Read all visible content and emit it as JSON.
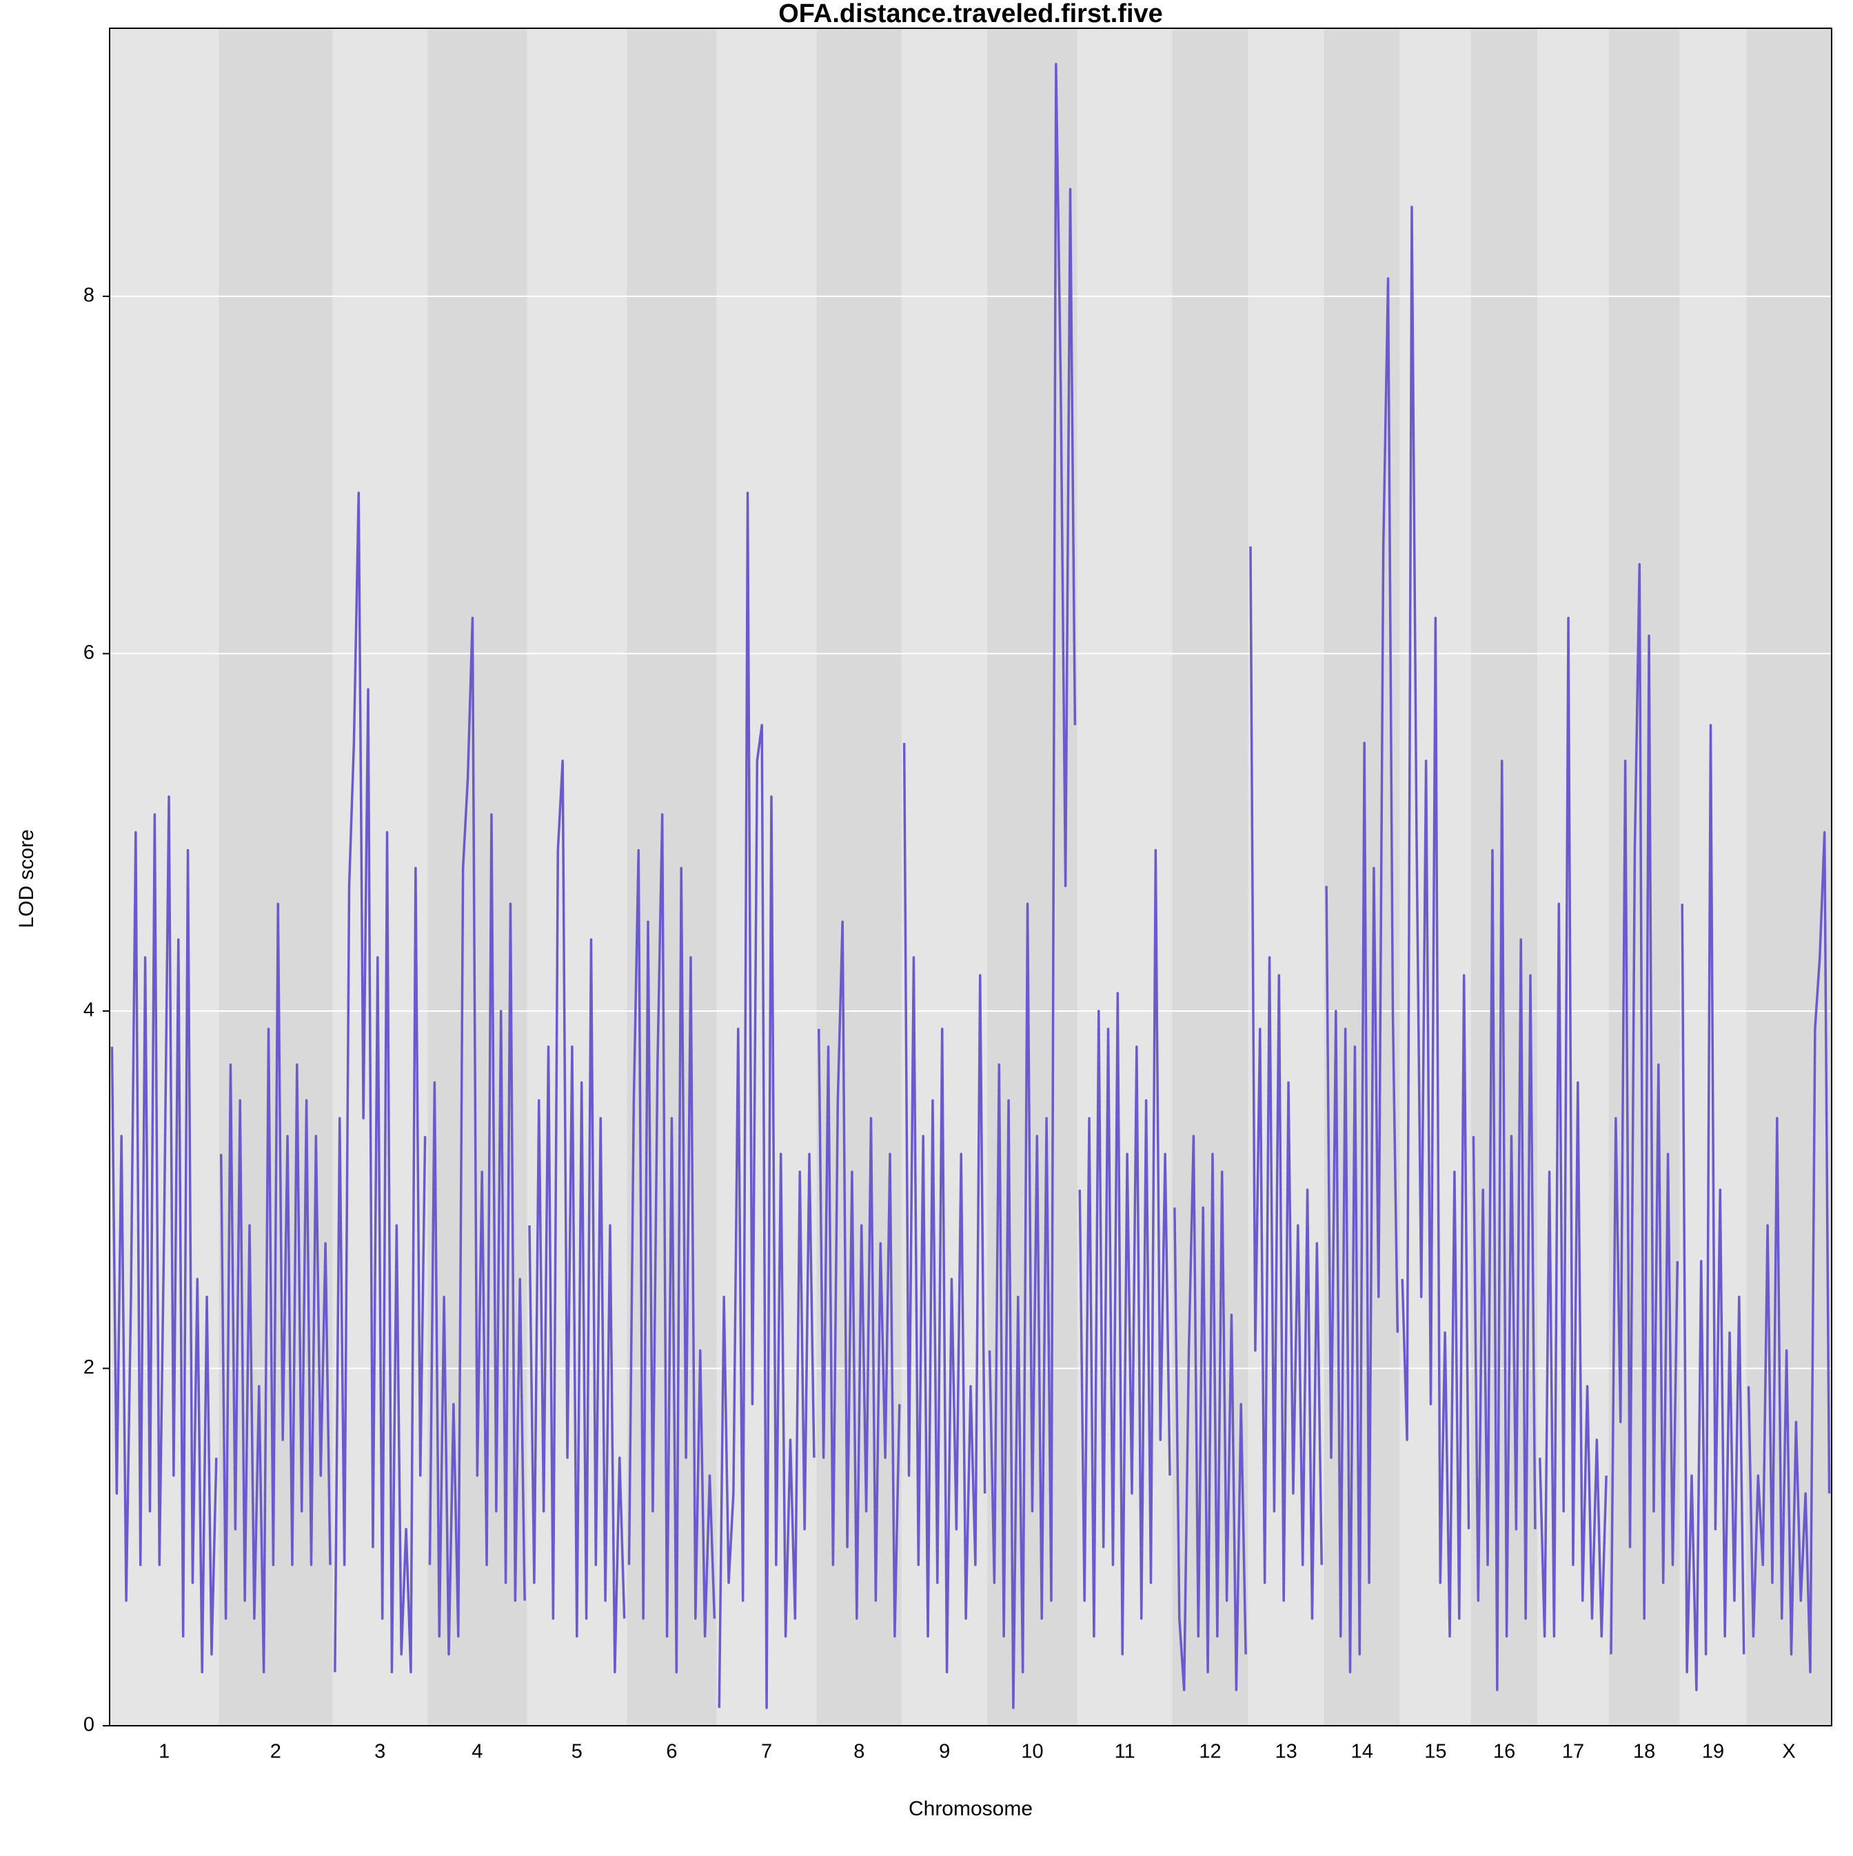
{
  "chart_data": {
    "type": "line",
    "title": "OFA.distance.traveled.first.five",
    "xlabel": "Chromosome",
    "ylabel": "LOD score",
    "color": "#6a5acd",
    "band_colors": [
      "#e5e5e5",
      "#d9d9d9"
    ],
    "grid": true,
    "ylim": [
      0,
      9.5
    ],
    "yticks": [
      0,
      2,
      4,
      6,
      8
    ],
    "categories": [
      "1",
      "2",
      "3",
      "4",
      "5",
      "6",
      "7",
      "8",
      "9",
      "10",
      "11",
      "12",
      "13",
      "14",
      "15",
      "16",
      "17",
      "18",
      "19",
      "X"
    ],
    "values": [
      [
        3.8,
        1.3,
        3.3,
        0.7,
        2.4,
        5.0,
        0.9,
        4.3,
        1.2,
        5.1,
        0.9,
        2.8,
        5.2,
        1.4,
        4.4,
        0.5,
        4.9,
        0.8,
        2.5,
        0.3,
        2.4,
        0.4,
        1.5
      ],
      [
        3.2,
        0.6,
        3.7,
        1.1,
        3.5,
        0.7,
        2.8,
        0.6,
        1.9,
        0.3,
        3.9,
        0.9,
        4.6,
        1.6,
        3.3,
        0.9,
        3.7,
        1.2,
        3.5,
        0.9,
        3.3,
        1.4,
        2.7,
        0.9
      ],
      [
        0.3,
        3.4,
        0.9,
        4.7,
        5.5,
        6.9,
        3.4,
        5.8,
        1.0,
        4.3,
        0.6,
        5.0,
        0.3,
        2.8,
        0.4,
        1.1,
        0.3,
        4.8,
        1.4,
        3.3
      ],
      [
        0.9,
        3.6,
        0.5,
        2.4,
        0.4,
        1.8,
        0.5,
        4.8,
        5.3,
        6.2,
        1.4,
        3.1,
        0.9,
        5.1,
        1.2,
        4.0,
        0.8,
        4.6,
        0.7,
        2.5,
        0.7
      ],
      [
        2.8,
        0.8,
        3.5,
        1.2,
        3.8,
        0.6,
        4.9,
        5.4,
        1.5,
        3.8,
        0.5,
        3.6,
        0.6,
        4.4,
        0.9,
        3.4,
        0.7,
        2.8,
        0.3,
        1.5,
        0.6
      ],
      [
        0.9,
        3.5,
        4.9,
        0.6,
        4.5,
        1.2,
        3.7,
        5.1,
        0.5,
        3.4,
        0.3,
        4.8,
        1.5,
        4.3,
        0.6,
        2.1,
        0.5,
        1.4,
        0.6
      ],
      [
        0.1,
        2.4,
        0.8,
        1.3,
        3.9,
        0.7,
        6.9,
        1.8,
        5.4,
        5.6,
        0.1,
        5.2,
        0.9,
        3.2,
        0.5,
        1.6,
        0.6,
        3.1,
        1.1,
        3.2,
        1.5
      ],
      [
        3.9,
        1.5,
        3.8,
        0.9,
        3.5,
        4.5,
        1.0,
        3.1,
        0.6,
        2.8,
        1.2,
        3.4,
        0.7,
        2.7,
        1.5,
        3.2,
        0.5,
        1.8
      ],
      [
        5.5,
        1.4,
        4.3,
        0.9,
        3.3,
        0.5,
        3.5,
        0.8,
        3.9,
        0.3,
        2.5,
        1.1,
        3.2,
        0.6,
        1.9,
        0.9,
        4.2,
        1.3
      ],
      [
        2.1,
        0.8,
        3.7,
        0.5,
        3.5,
        0.1,
        2.4,
        0.3,
        4.6,
        1.2,
        3.3,
        0.6,
        3.4,
        0.7,
        9.3,
        7.5,
        4.7,
        8.6,
        5.6
      ],
      [
        3.0,
        0.7,
        3.4,
        0.5,
        4.0,
        1.0,
        3.9,
        0.9,
        4.1,
        0.4,
        3.2,
        1.3,
        3.8,
        0.6,
        3.5,
        0.8,
        4.9,
        1.6,
        3.2,
        1.4
      ],
      [
        2.9,
        0.6,
        0.2,
        2.1,
        3.3,
        0.5,
        2.9,
        0.3,
        3.2,
        0.5,
        3.1,
        0.7,
        2.3,
        0.2,
        1.8,
        0.4
      ],
      [
        6.6,
        2.1,
        3.9,
        0.8,
        4.3,
        1.2,
        4.2,
        0.7,
        3.6,
        1.3,
        2.8,
        0.9,
        3.0,
        0.6,
        2.7,
        0.9
      ],
      [
        4.7,
        1.5,
        4.0,
        0.5,
        3.9,
        0.3,
        3.8,
        0.4,
        5.5,
        0.8,
        4.8,
        2.4,
        6.6,
        8.1,
        4.0,
        2.2
      ],
      [
        2.5,
        1.6,
        8.5,
        5.0,
        2.4,
        5.4,
        1.8,
        6.2,
        0.8,
        2.2,
        0.5,
        3.1,
        0.6,
        4.2,
        1.1
      ],
      [
        3.3,
        0.7,
        3.0,
        0.9,
        4.9,
        0.2,
        5.4,
        0.5,
        3.3,
        1.1,
        4.4,
        0.6,
        4.2,
        1.1
      ],
      [
        1.5,
        0.5,
        3.1,
        0.5,
        4.6,
        1.2,
        6.2,
        0.9,
        3.6,
        0.7,
        1.9,
        0.6,
        1.6,
        0.5,
        1.4
      ],
      [
        0.4,
        3.4,
        1.7,
        5.4,
        1.0,
        4.9,
        6.5,
        0.6,
        6.1,
        1.2,
        3.7,
        0.8,
        3.2,
        0.9,
        2.6
      ],
      [
        4.6,
        0.3,
        1.4,
        0.2,
        2.6,
        0.4,
        5.6,
        1.1,
        3.0,
        0.5,
        2.2,
        0.7,
        2.4,
        0.4
      ],
      [
        1.9,
        0.5,
        1.4,
        0.9,
        2.8,
        0.8,
        3.4,
        0.6,
        2.1,
        0.4,
        1.7,
        0.7,
        1.3,
        0.3,
        3.9,
        4.3,
        5.0,
        1.3
      ]
    ]
  }
}
